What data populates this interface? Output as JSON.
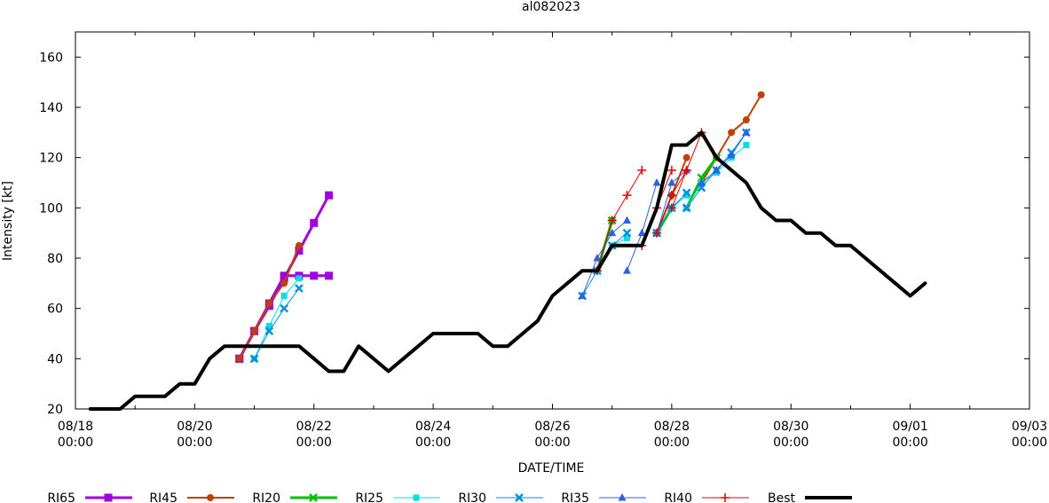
{
  "chart_data": {
    "type": "line",
    "title": "al082023",
    "xlabel": "DATE/TIME",
    "ylabel": "Intensity [kt]",
    "xlim": [
      "2023-08-18 00:00",
      "2023-09-03 00:00"
    ],
    "ylim": [
      20,
      170
    ],
    "yticks": [
      20,
      40,
      60,
      80,
      100,
      120,
      140,
      160
    ],
    "xticks": [
      {
        "t": "2023-08-18 00:00",
        "l1": "08/18",
        "l2": "00:00"
      },
      {
        "t": "2023-08-20 00:00",
        "l1": "08/20",
        "l2": "00:00"
      },
      {
        "t": "2023-08-22 00:00",
        "l1": "08/22",
        "l2": "00:00"
      },
      {
        "t": "2023-08-24 00:00",
        "l1": "08/24",
        "l2": "00:00"
      },
      {
        "t": "2023-08-26 00:00",
        "l1": "08/26",
        "l2": "00:00"
      },
      {
        "t": "2023-08-28 00:00",
        "l1": "08/28",
        "l2": "00:00"
      },
      {
        "t": "2023-08-30 00:00",
        "l1": "08/30",
        "l2": "00:00"
      },
      {
        "t": "2023-09-01 00:00",
        "l1": "09/01",
        "l2": "00:00"
      },
      {
        "t": "2023-09-03 00:00",
        "l1": "09/03",
        "l2": "00:00"
      }
    ],
    "grid": false,
    "legend_position": "bottom",
    "series": [
      {
        "name": "RI65",
        "color": "#a000e0",
        "marker": "square",
        "width": 3,
        "segments": [
          {
            "t0": "2023-08-20 18:00",
            "v": [
              40,
              51,
              61,
              72,
              83,
              94,
              105
            ]
          },
          {
            "t0": "2023-08-20 18:00",
            "v": [
              40,
              51,
              62,
              73,
              73,
              73,
              73
            ]
          }
        ]
      },
      {
        "name": "RI45",
        "color": "#c04000",
        "marker": "circle",
        "width": 2,
        "segments": [
          {
            "t0": "2023-08-20 18:00",
            "v": [
              40,
              51,
              62,
              70,
              85
            ]
          },
          {
            "t0": "2023-08-26 18:00",
            "v": [
              75,
              95
            ]
          },
          {
            "t0": "2023-08-27 18:00",
            "v": [
              90,
              105,
              120
            ]
          },
          {
            "t0": "2023-08-28 12:00",
            "v": [
              110,
              120,
              130,
              135,
              145
            ]
          }
        ]
      },
      {
        "name": "RI20",
        "color": "#00c000",
        "marker": "x",
        "width": 3,
        "segments": [
          {
            "t0": "2023-08-26 18:00",
            "v": [
              75,
              95
            ]
          },
          {
            "t0": "2023-08-27 18:00",
            "v": [
              90,
              100
            ]
          },
          {
            "t0": "2023-08-28 06:00",
            "v": [
              100,
              112,
              120
            ]
          }
        ]
      },
      {
        "name": "RI25",
        "color": "#00e0e0",
        "marker": "square-small",
        "width": 1,
        "segments": [
          {
            "t0": "2023-08-21 00:00",
            "v": [
              40,
              53,
              65,
              72
            ]
          },
          {
            "t0": "2023-08-26 18:00",
            "v": [
              75,
              85,
              88
            ]
          },
          {
            "t0": "2023-08-27 18:00",
            "v": [
              90,
              100,
              105
            ]
          },
          {
            "t0": "2023-08-28 06:00",
            "v": [
              100,
              110,
              114,
              120,
              125
            ]
          }
        ]
      },
      {
        "name": "RI30",
        "color": "#0090e0",
        "marker": "x",
        "width": 1,
        "segments": [
          {
            "t0": "2023-08-21 00:00",
            "v": [
              40,
              51,
              60,
              68
            ]
          },
          {
            "t0": "2023-08-26 12:00",
            "v": [
              65,
              75,
              85,
              90
            ]
          },
          {
            "t0": "2023-08-27 18:00",
            "v": [
              90,
              100,
              106
            ]
          },
          {
            "t0": "2023-08-28 06:00",
            "v": [
              100,
              108,
              115,
              122,
              130
            ]
          }
        ]
      },
      {
        "name": "RI35",
        "color": "#3060e0",
        "marker": "triangle",
        "width": 1,
        "segments": [
          {
            "t0": "2023-08-26 12:00",
            "v": [
              65,
              80,
              90,
              95
            ]
          },
          {
            "t0": "2023-08-27 06:00",
            "v": [
              75,
              90,
              110
            ]
          },
          {
            "t0": "2023-08-27 18:00",
            "v": [
              90,
              110,
              115
            ]
          },
          {
            "t0": "2023-08-28 12:00",
            "v": [
              110,
              115,
              121,
              130
            ]
          }
        ]
      },
      {
        "name": "RI40",
        "color": "#e00000",
        "marker": "plus",
        "width": 1,
        "segments": [
          {
            "t0": "2023-08-26 18:00",
            "v": [
              75,
              95,
              105,
              115
            ]
          },
          {
            "t0": "2023-08-27 12:00",
            "v": [
              85,
              100,
              115
            ]
          },
          {
            "t0": "2023-08-27 18:00",
            "v": [
              90,
              105,
              115
            ]
          },
          {
            "t0": "2023-08-28 00:00",
            "v": [
              100,
              115,
              130
            ]
          }
        ]
      },
      {
        "name": "Best",
        "color": "#000000",
        "marker": "none",
        "width": 4,
        "segments": [
          {
            "t0": "2023-08-18 06:00",
            "v": [
              20,
              20,
              20,
              25,
              25,
              25,
              30,
              30,
              40,
              45,
              45,
              45,
              45,
              45,
              45,
              40,
              35,
              35,
              45,
              40,
              35,
              40,
              45,
              50,
              50,
              50,
              50,
              45,
              45,
              50,
              55,
              65,
              70,
              75,
              75,
              85,
              85,
              85,
              100,
              125,
              125,
              130,
              120,
              115,
              110,
              100,
              95,
              95,
              90,
              90,
              85,
              85,
              80,
              75,
              70,
              65,
              70
            ]
          }
        ]
      }
    ]
  }
}
